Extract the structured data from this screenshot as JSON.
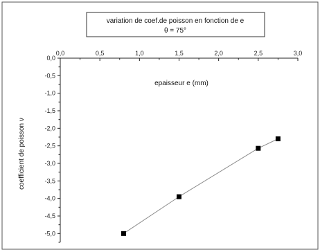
{
  "chart_data": {
    "type": "line",
    "title": "variation de coef.de poisson en fonction de e",
    "subtitle": "θ = 75°",
    "xlabel": "epaisseur e (mm)",
    "ylabel": "coefficient de poisson ν",
    "xlim": [
      0.0,
      3.0
    ],
    "ylim": [
      -5.25,
      0.0
    ],
    "x_ticks": [
      "0,0",
      "0,5",
      "1,0",
      "1,5",
      "2,0",
      "2,5",
      "3,0"
    ],
    "y_ticks": [
      "0,0",
      "-0,5",
      "-1,0",
      "-1,5",
      "-2,0",
      "-2,5",
      "-3,0",
      "-3,5",
      "-4,0",
      "-4,5",
      "-5,0"
    ],
    "x_axis_position": "top",
    "grid": false,
    "legend": "none",
    "series": [
      {
        "x": [
          0.8,
          1.5,
          2.5,
          2.75
        ],
        "y": [
          -5.0,
          -3.95,
          -2.57,
          -2.3
        ],
        "color": "#000000",
        "line_color": "#8c8c8c",
        "marker": "square"
      }
    ]
  }
}
